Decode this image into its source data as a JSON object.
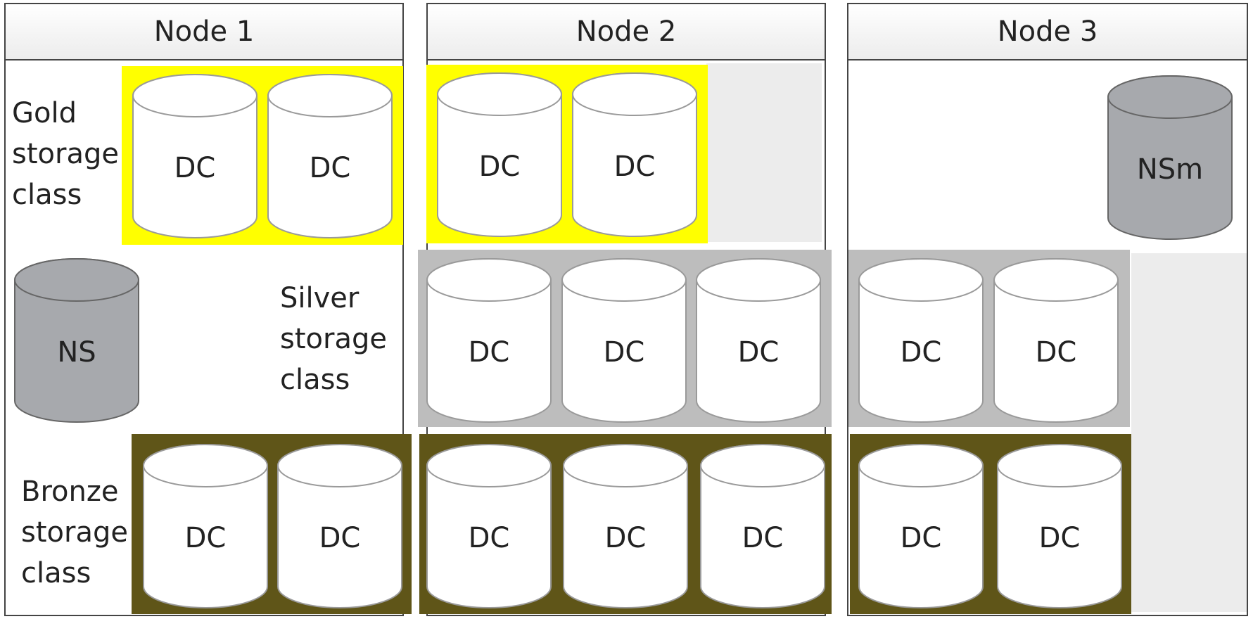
{
  "nodes": [
    {
      "title": "Node 1"
    },
    {
      "title": "Node 2"
    },
    {
      "title": "Node 3"
    }
  ],
  "classes": {
    "gold": "Gold\nstorage\nclass",
    "silver": "Silver\nstorage\nclass",
    "bronze": "Bronze\nstorage\nclass"
  },
  "disk_labels": {
    "dc": "DC",
    "ns": "NS",
    "nsm": "NSm"
  },
  "colors": {
    "gold": "#ffff00",
    "silver": "#bdbdbd",
    "bronze": "#5f5518",
    "data_disk": "#ffffff",
    "name_server_disk": "#a7a9ad"
  }
}
